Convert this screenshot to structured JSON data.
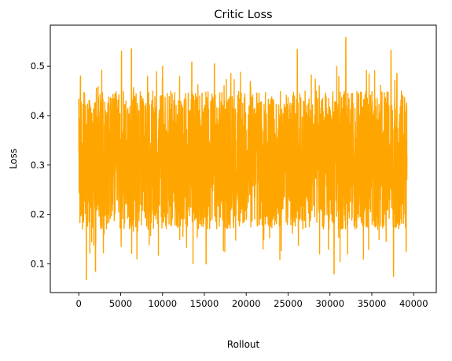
{
  "chart_data": {
    "type": "line",
    "title": "Critic Loss",
    "xlabel": "Rollout",
    "ylabel": "Loss",
    "xlim": [
      -3400,
      42700
    ],
    "ylim": [
      0.042,
      0.583
    ],
    "xticks": [
      0,
      5000,
      10000,
      15000,
      20000,
      25000,
      30000,
      35000,
      40000
    ],
    "xtick_labels": [
      "0",
      "5000",
      "10000",
      "15000",
      "20000",
      "25000",
      "30000",
      "35000",
      "40000"
    ],
    "yticks": [
      0.1,
      0.2,
      0.3,
      0.4,
      0.5
    ],
    "ytick_labels": [
      "0.1",
      "0.2",
      "0.3",
      "0.4",
      "0.5"
    ],
    "grid": false,
    "legend": "none",
    "series": [
      {
        "color": "#FFA500",
        "x_range": [
          0,
          39200
        ],
        "n_points": 39200,
        "mean": 0.3,
        "typical_band": [
          0.17,
          0.45
        ],
        "max": 0.558,
        "max_at": 31900,
        "min": 0.068,
        "min_at": 900,
        "notable_peaks": [
          {
            "x": 200,
            "y": 0.48
          },
          {
            "x": 5100,
            "y": 0.53
          },
          {
            "x": 6300,
            "y": 0.535
          },
          {
            "x": 13500,
            "y": 0.508
          },
          {
            "x": 16200,
            "y": 0.505
          },
          {
            "x": 26100,
            "y": 0.534
          },
          {
            "x": 31900,
            "y": 0.558
          },
          {
            "x": 37300,
            "y": 0.532
          },
          {
            "x": 38000,
            "y": 0.485
          }
        ],
        "notable_troughs": [
          {
            "x": 900,
            "y": 0.068
          },
          {
            "x": 2000,
            "y": 0.085
          },
          {
            "x": 15200,
            "y": 0.1
          },
          {
            "x": 30500,
            "y": 0.08
          },
          {
            "x": 37600,
            "y": 0.075
          },
          {
            "x": 39100,
            "y": 0.125
          }
        ]
      }
    ]
  }
}
